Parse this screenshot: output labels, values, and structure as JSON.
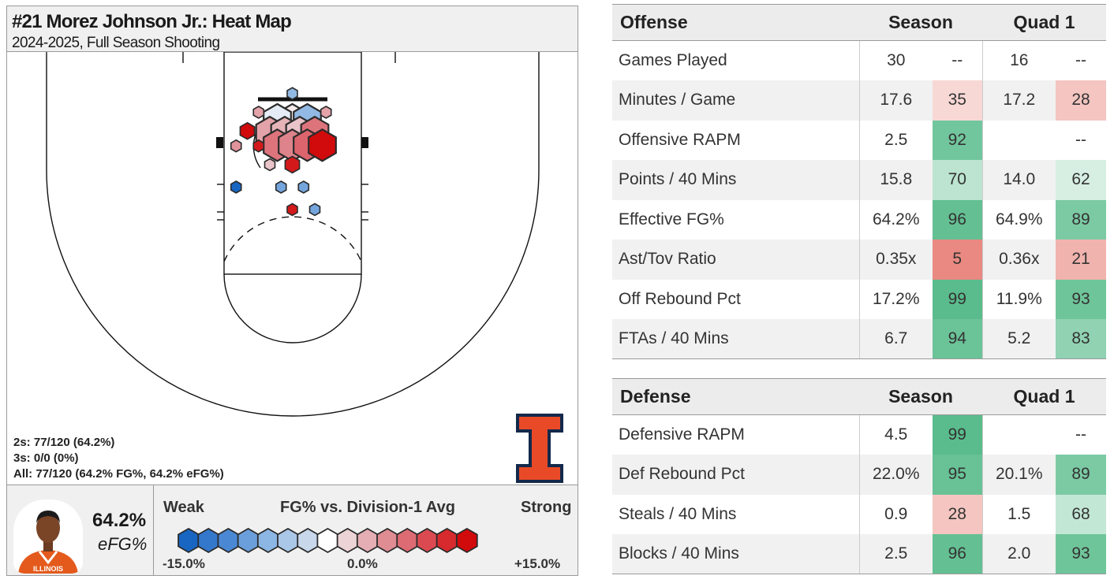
{
  "title": "#21 Morez Johnson Jr.: Heat Map",
  "subtitle": "2024-2025, Full Season Shooting",
  "shot_summary": {
    "twos": "2s: 77/120 (64.2%)",
    "threes": "3s: 0/0 (0%)",
    "all": "All: 77/120 (64.2% FG%, 64.2% eFG%)"
  },
  "player_efg": {
    "value": "64.2%",
    "label": "eFG%"
  },
  "legend": {
    "title": "FG% vs. Division-1 Avg",
    "weak": "Weak",
    "strong": "Strong",
    "min_label": "-15.0%",
    "mid_label": "0.0%",
    "max_label": "+15.0%",
    "min": -15,
    "max": 15,
    "colors": [
      "#1866c2",
      "#3478cc",
      "#4b88d4",
      "#6b9fdb",
      "#8cb6e3",
      "#aac7e8",
      "#c8d7ea",
      "#ffffff",
      "#ecd3d6",
      "#e5aeb4",
      "#df8c93",
      "#dc6b74",
      "#dc4a51",
      "#d72a2e",
      "#d10a0b"
    ]
  },
  "colors": {
    "hex_stroke": "#2b2b2b",
    "logo_orange": "#e84a27",
    "logo_navy": "#13294b",
    "high_pct": "#57bb8a",
    "low_pct": "#e67c73"
  },
  "chart_data": {
    "type": "heatmap",
    "title": "#21 Morez Johnson Jr.: Heat Map",
    "subtitle": "2024-2025, Full Season Shooting",
    "value_label": "FG% vs. Division-1 Avg",
    "color_range": [
      -15,
      15
    ],
    "axis_units": "ft from basket center",
    "hexes": [
      {
        "x": 0.0,
        "y": 2.0,
        "diff": 1,
        "size": "large"
      },
      {
        "x": -2.0,
        "y": 2.0,
        "diff": -1,
        "size": "large"
      },
      {
        "x": 2.0,
        "y": 2.0,
        "diff": -6,
        "size": "large"
      },
      {
        "x": -3.0,
        "y": 0.3,
        "diff": 5,
        "size": "large"
      },
      {
        "x": -1.0,
        "y": 0.3,
        "diff": 4,
        "size": "large"
      },
      {
        "x": 1.0,
        "y": 0.3,
        "diff": 3,
        "size": "large"
      },
      {
        "x": 3.0,
        "y": 0.3,
        "diff": 8,
        "size": "large"
      },
      {
        "x": -2.0,
        "y": -1.4,
        "diff": 8,
        "size": "large"
      },
      {
        "x": 0.0,
        "y": -1.4,
        "diff": 7,
        "size": "large"
      },
      {
        "x": 2.0,
        "y": -1.4,
        "diff": 9,
        "size": "large"
      },
      {
        "x": 4.0,
        "y": -1.4,
        "diff": 15,
        "size": "large"
      },
      {
        "x": 0.0,
        "y": 5.5,
        "diff": -6,
        "size": "small"
      },
      {
        "x": -4.5,
        "y": 3.0,
        "diff": 5,
        "size": "small"
      },
      {
        "x": 4.5,
        "y": 3.0,
        "diff": 5,
        "size": "small"
      },
      {
        "x": -6.0,
        "y": 0.5,
        "diff": 15,
        "size": "medium"
      },
      {
        "x": -7.5,
        "y": -1.5,
        "diff": 6,
        "size": "small"
      },
      {
        "x": -4.5,
        "y": -1.5,
        "diff": 14,
        "size": "small"
      },
      {
        "x": -3.0,
        "y": -4.0,
        "diff": 3,
        "size": "small"
      },
      {
        "x": 0.0,
        "y": -4.0,
        "diff": 14,
        "size": "medium"
      },
      {
        "x": -7.5,
        "y": -7.0,
        "diff": -15,
        "size": "small"
      },
      {
        "x": -1.5,
        "y": -7.0,
        "diff": -8,
        "size": "small"
      },
      {
        "x": 1.5,
        "y": -7.0,
        "diff": -8,
        "size": "small"
      },
      {
        "x": 0.0,
        "y": -10.0,
        "diff": 14,
        "size": "small"
      },
      {
        "x": 3.0,
        "y": -10.0,
        "diff": -8,
        "size": "small"
      }
    ]
  },
  "offense": {
    "header": {
      "title": "Offense",
      "season": "Season",
      "quad": "Quad 1"
    },
    "rows": [
      {
        "label": "Games Played",
        "season_val": "30",
        "season_pct": "--",
        "quad_val": "16",
        "quad_pct": "--"
      },
      {
        "label": "Minutes / Game",
        "season_val": "17.6",
        "season_pct": "35",
        "quad_val": "17.2",
        "quad_pct": "28"
      },
      {
        "label": "Offensive RAPM",
        "season_val": "2.5",
        "season_pct": "92",
        "quad_val": "",
        "quad_pct": "--"
      },
      {
        "label": "Points / 40 Mins",
        "season_val": "15.8",
        "season_pct": "70",
        "quad_val": "14.0",
        "quad_pct": "62"
      },
      {
        "label": "Effective FG%",
        "season_val": "64.2%",
        "season_pct": "96",
        "quad_val": "64.9%",
        "quad_pct": "89"
      },
      {
        "label": "Ast/Tov Ratio",
        "season_val": "0.35x",
        "season_pct": "5",
        "quad_val": "0.36x",
        "quad_pct": "21"
      },
      {
        "label": "Off Rebound Pct",
        "season_val": "17.2%",
        "season_pct": "99",
        "quad_val": "11.9%",
        "quad_pct": "93"
      },
      {
        "label": "FTAs / 40 Mins",
        "season_val": "6.7",
        "season_pct": "94",
        "quad_val": "5.2",
        "quad_pct": "83"
      }
    ]
  },
  "defense": {
    "header": {
      "title": "Defense",
      "season": "Season",
      "quad": "Quad 1"
    },
    "rows": [
      {
        "label": "Defensive RAPM",
        "season_val": "4.5",
        "season_pct": "99",
        "quad_val": "",
        "quad_pct": "--"
      },
      {
        "label": "Def Rebound Pct",
        "season_val": "22.0%",
        "season_pct": "95",
        "quad_val": "20.1%",
        "quad_pct": "89"
      },
      {
        "label": "Steals / 40 Mins",
        "season_val": "0.9",
        "season_pct": "28",
        "quad_val": "1.5",
        "quad_pct": "68"
      },
      {
        "label": "Blocks / 40 Mins",
        "season_val": "2.5",
        "season_pct": "96",
        "quad_val": "2.0",
        "quad_pct": "93"
      }
    ]
  }
}
